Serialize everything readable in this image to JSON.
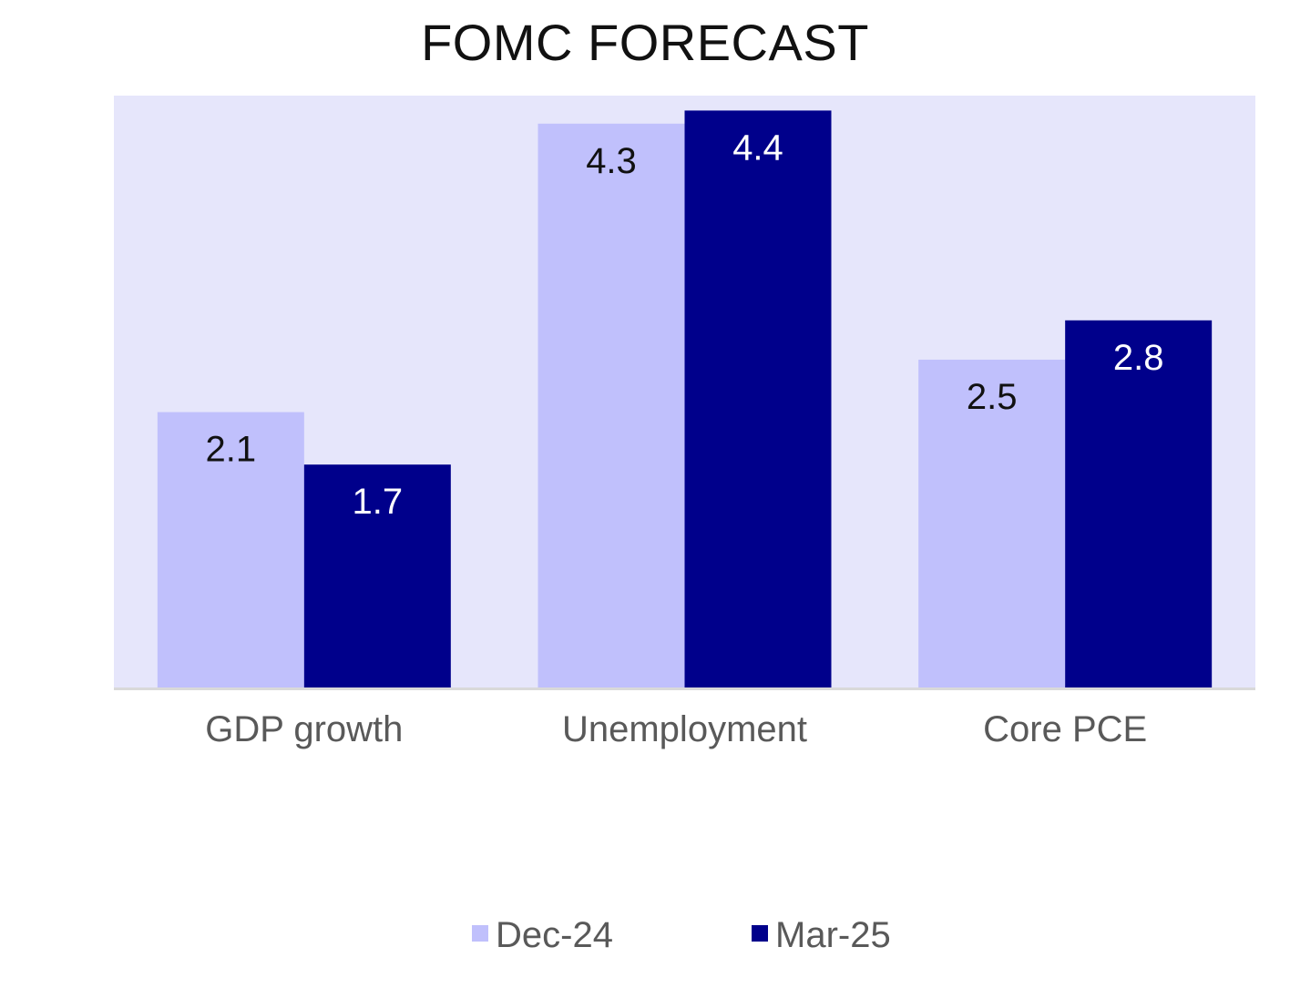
{
  "chart_data": {
    "type": "bar",
    "title": "FOMC FORECAST",
    "xlabel": "",
    "ylabel": "",
    "categories": [
      "GDP growth",
      "Unemployment",
      "Core PCE"
    ],
    "series": [
      {
        "name": "Dec-24",
        "values": [
          2.1,
          4.3,
          2.5
        ],
        "color": "#c0c0fc"
      },
      {
        "name": "Mar-25",
        "values": [
          1.7,
          4.4,
          2.8
        ],
        "color": "#00008b"
      }
    ],
    "ylim": [
      0,
      4.5
    ],
    "grid": false,
    "legend_position": "bottom",
    "data_labels": true,
    "colors": {
      "plot_background": "#e6e6fb",
      "baseline": "#d9d9d9",
      "tick_label": "#595959",
      "label_on_light": "#111111",
      "label_on_dark": "#ffffff"
    }
  }
}
